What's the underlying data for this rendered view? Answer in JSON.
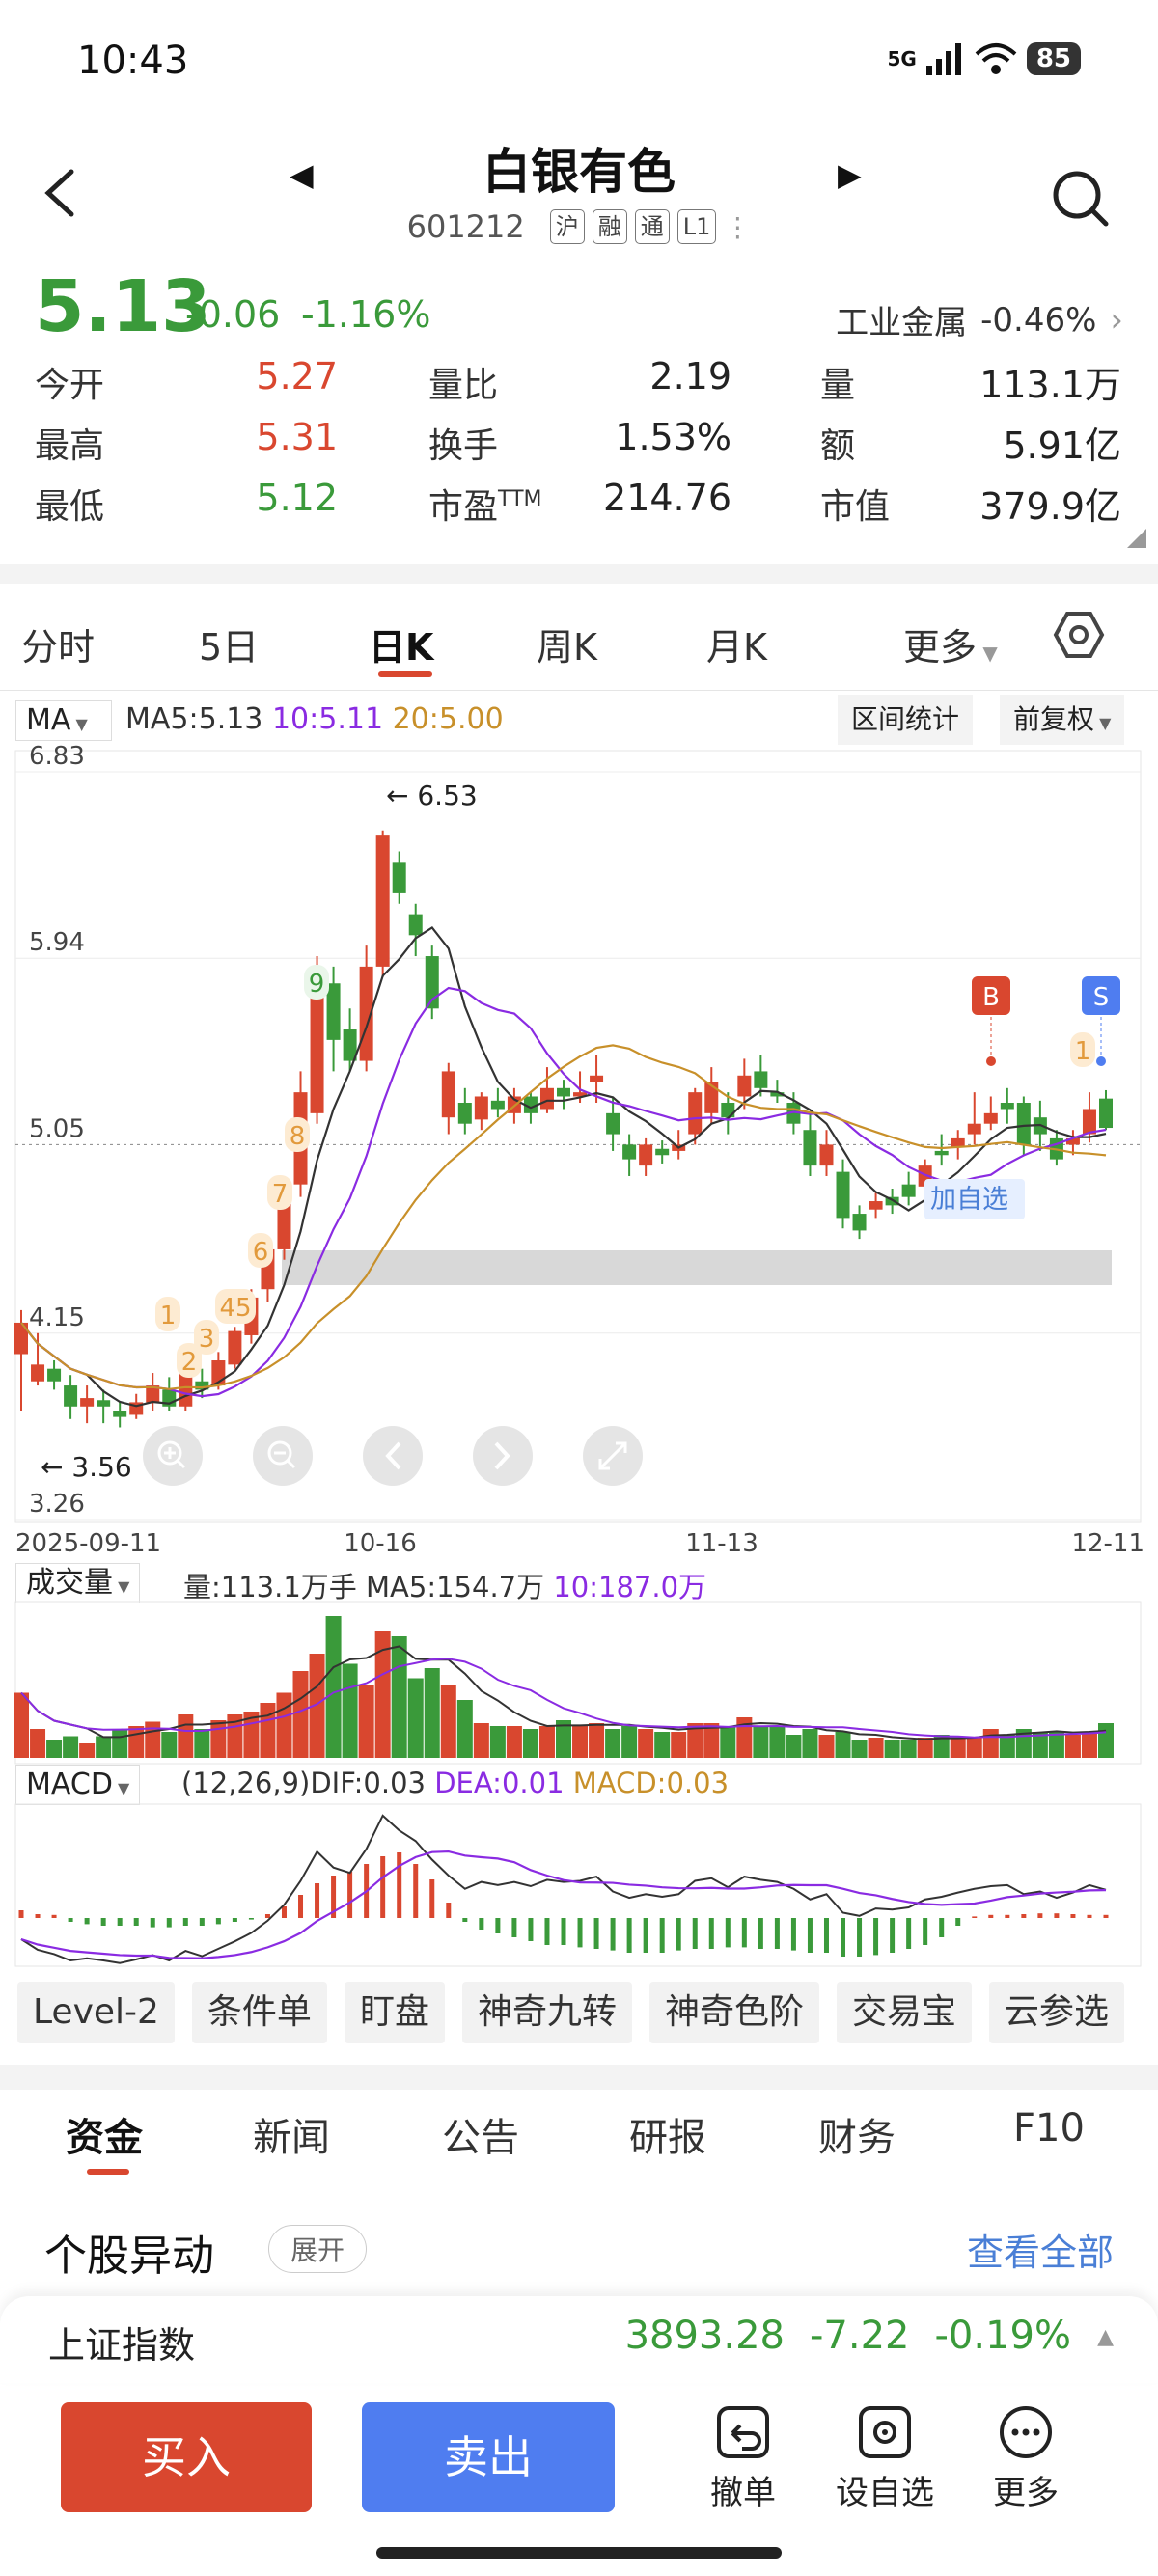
{
  "status_bar": {
    "time": "10:43",
    "network": "5G",
    "battery": "85"
  },
  "header": {
    "title": "白银有色",
    "code": "601212",
    "tags": [
      "沪",
      "融",
      "通",
      "L1"
    ]
  },
  "quote": {
    "price": "5.13",
    "change": "-0.06",
    "change_pct": "-1.16%",
    "sector": "工业金属",
    "sector_pct": "-0.46%",
    "stats": [
      {
        "label": "今开",
        "value": "5.27",
        "color": "#d9472f"
      },
      {
        "label": "量比",
        "value": "2.19",
        "color": "#222222"
      },
      {
        "label": "量",
        "value": "113.1万",
        "color": "#222222"
      },
      {
        "label": "最高",
        "value": "5.31",
        "color": "#d9472f"
      },
      {
        "label": "换手",
        "value": "1.53%",
        "color": "#222222"
      },
      {
        "label": "额",
        "value": "5.91亿",
        "color": "#222222"
      },
      {
        "label": "最低",
        "value": "5.12",
        "color": "#3a9a3a"
      },
      {
        "label": "市盈",
        "label_sup": "TTM",
        "value": "214.76",
        "color": "#222222"
      },
      {
        "label": "市值",
        "value": "379.9亿",
        "color": "#222222"
      }
    ]
  },
  "tabs": [
    "分时",
    "5日",
    "日K",
    "周K",
    "月K",
    "更多"
  ],
  "ma": {
    "select": "MA",
    "ma5": "MA5:5.13",
    "ma10": "10:5.11",
    "ma20": "20:5.00"
  },
  "chart_buttons": {
    "range": "区间统计",
    "adjust": "前复权"
  },
  "colors": {
    "up": "#d9472f",
    "down": "#3a9a3a",
    "ma5": "#333333",
    "ma10": "#8a2be2",
    "ma20": "#c8902a",
    "accent_blue": "#4f7df0"
  },
  "chart_data": [
    {
      "type": "candlestick",
      "y_ticks": [
        "6.83",
        "5.94",
        "5.05",
        "4.15",
        "3.26"
      ],
      "x_ticks": [
        "2025-09-11",
        "10-16",
        "11-13",
        "12-11"
      ],
      "annotations": {
        "high": "6.53",
        "low": "3.56",
        "add_watch": "加自选",
        "buy_mark": "B",
        "sell_mark": "S"
      },
      "nine_turn_labels": [
        "1",
        "2",
        "3",
        "45",
        "6",
        "7",
        "8",
        "9",
        "1"
      ],
      "ylim": [
        3.26,
        6.83
      ]
    },
    {
      "type": "bar",
      "selector": "成交量",
      "label": "量:113.1万手",
      "ma5": "MA5:154.7万",
      "ma10": "10:187.0万"
    },
    {
      "type": "bar",
      "selector": "MACD",
      "params": "(12,26,9)",
      "dif": "DIF:0.03",
      "dea": "DEA:0.01",
      "macd": "MACD:0.03"
    }
  ],
  "tools": [
    "Level-2",
    "条件单",
    "盯盘",
    "神奇九转",
    "神奇色阶",
    "交易宝",
    "云参选"
  ],
  "news_tabs": [
    "资金",
    "新闻",
    "公告",
    "研报",
    "财务",
    "F10"
  ],
  "alerts": {
    "title": "个股异动",
    "expand": "展开",
    "view_all": "查看全部"
  },
  "index": {
    "name": "上证指数",
    "value": "3893.28",
    "change": "-7.22",
    "pct": "-0.19%"
  },
  "actions": {
    "buy": "买入",
    "sell": "卖出",
    "cancel": "撤单",
    "watch": "设自选",
    "more": "更多"
  }
}
